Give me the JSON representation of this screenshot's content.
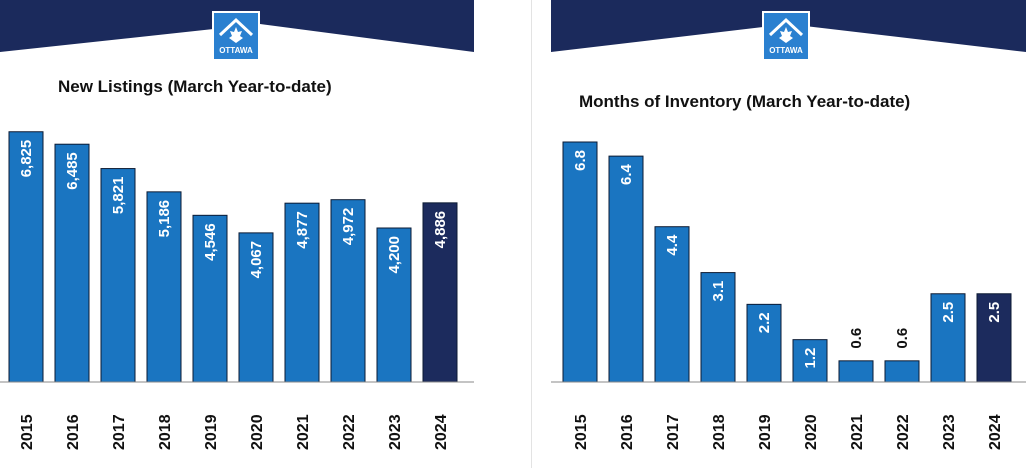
{
  "colors": {
    "band": "#1b2a5c",
    "bar": "#1a75c1",
    "bar_highlight": "#1c2b5d",
    "logo": "#2a80d0"
  },
  "logo": {
    "icon": "ottawa-real-estate-board-logo",
    "text": "OTTAWA"
  },
  "chart_data": [
    {
      "type": "bar",
      "title": "New Listings (March Year-to-date)",
      "categories": [
        "2015",
        "2016",
        "2017",
        "2018",
        "2019",
        "2020",
        "2021",
        "2022",
        "2023",
        "2024"
      ],
      "values": [
        6825,
        6485,
        5821,
        5186,
        4546,
        4067,
        4877,
        4972,
        4200,
        4886
      ],
      "labels": [
        "6,825",
        "6,485",
        "5,821",
        "5,186",
        "4,546",
        "4,067",
        "4,877",
        "4,972",
        "4,200",
        "4,886"
      ],
      "highlight": "2024",
      "ylim": [
        0,
        6900
      ]
    },
    {
      "type": "bar",
      "title": "Months of Inventory   (March Year-to-date)",
      "categories": [
        "2015",
        "2016",
        "2017",
        "2018",
        "2019",
        "2020",
        "2021",
        "2022",
        "2023",
        "2024"
      ],
      "values": [
        6.8,
        6.4,
        4.4,
        3.1,
        2.2,
        1.2,
        0.6,
        0.6,
        2.5,
        2.5
      ],
      "labels": [
        "6.8",
        "6.4",
        "4.4",
        "3.1",
        "2.2",
        "1.2",
        "0.6",
        "0.6",
        "2.5",
        "2.5"
      ],
      "highlight": "2024",
      "ylim": [
        0,
        6.8
      ]
    }
  ]
}
